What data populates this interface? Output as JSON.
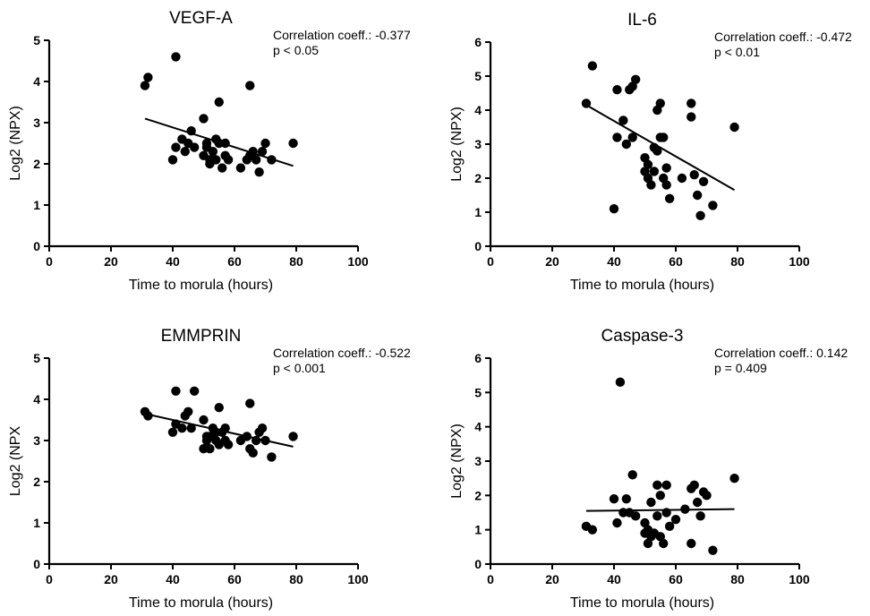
{
  "chart_data": [
    {
      "type": "scatter",
      "title": "VEGF-A",
      "xlabel": "Time to morula (hours)",
      "ylabel": "Log2 (NPX)",
      "xlim": [
        0,
        100
      ],
      "ylim": [
        0,
        5
      ],
      "xticks": [
        0,
        20,
        40,
        60,
        80,
        100
      ],
      "yticks": [
        0,
        1,
        2,
        3,
        4,
        5
      ],
      "grid": false,
      "annotations": [
        "Correlation coeff.: -0.377",
        "p < 0.05"
      ],
      "trendline": {
        "x": [
          31,
          79
        ],
        "y": [
          3.1,
          1.95
        ]
      },
      "x": [
        31,
        32,
        40,
        41,
        41,
        43,
        44,
        45,
        46,
        47,
        50,
        50,
        51,
        51,
        52,
        52,
        53,
        54,
        54,
        55,
        55,
        56,
        57,
        57,
        58,
        62,
        64,
        65,
        65,
        66,
        67,
        68,
        69,
        70,
        72,
        79
      ],
      "y": [
        3.9,
        4.1,
        2.1,
        2.4,
        4.6,
        2.6,
        2.3,
        2.5,
        2.8,
        2.4,
        3.1,
        2.2,
        2.4,
        2.5,
        2.1,
        2.0,
        2.3,
        2.1,
        2.6,
        2.5,
        3.5,
        1.9,
        2.5,
        2.2,
        2.1,
        1.9,
        2.1,
        2.2,
        3.9,
        2.3,
        2.1,
        1.8,
        2.3,
        2.5,
        2.1,
        2.5
      ]
    },
    {
      "type": "scatter",
      "title": "IL-6",
      "xlabel": "Time to morula (hours)",
      "ylabel": "Log2 (NPX)",
      "xlim": [
        0,
        100
      ],
      "ylim": [
        0,
        6
      ],
      "xticks": [
        0,
        20,
        40,
        60,
        80,
        100
      ],
      "yticks": [
        0,
        1,
        2,
        3,
        4,
        5,
        6
      ],
      "grid": false,
      "annotations": [
        "Correlation coeff.: -0.472",
        "p < 0.01"
      ],
      "trendline": {
        "x": [
          31,
          79
        ],
        "y": [
          4.15,
          1.65
        ]
      },
      "x": [
        31,
        33,
        40,
        41,
        41,
        43,
        44,
        45,
        46,
        46,
        47,
        50,
        50,
        51,
        51,
        52,
        53,
        53,
        54,
        54,
        55,
        55,
        56,
        56,
        57,
        57,
        58,
        62,
        65,
        65,
        66,
        67,
        68,
        69,
        72,
        79
      ],
      "y": [
        4.2,
        5.3,
        1.1,
        3.2,
        4.6,
        3.7,
        3.0,
        4.6,
        4.7,
        3.2,
        4.9,
        2.6,
        2.2,
        2.0,
        2.4,
        1.8,
        2.9,
        2.2,
        4.0,
        2.8,
        4.2,
        3.2,
        3.2,
        2.0,
        1.8,
        2.3,
        1.4,
        2.0,
        4.2,
        3.8,
        2.1,
        1.5,
        0.9,
        1.9,
        1.2,
        3.5
      ]
    },
    {
      "type": "scatter",
      "title": "EMMPRIN",
      "xlabel": "Time to morula (hours)",
      "ylabel": "Log2 (NPX",
      "xlim": [
        0,
        100
      ],
      "ylim": [
        0,
        5
      ],
      "xticks": [
        0,
        20,
        40,
        60,
        80,
        100
      ],
      "yticks": [
        0,
        1,
        2,
        3,
        4,
        5
      ],
      "grid": false,
      "annotations": [
        "Correlation coeff.: -0.522",
        "p < 0.001"
      ],
      "trendline": {
        "x": [
          31,
          79
        ],
        "y": [
          3.65,
          2.85
        ]
      },
      "x": [
        31,
        32,
        40,
        41,
        41,
        43,
        44,
        45,
        46,
        47,
        50,
        50,
        51,
        51,
        52,
        52,
        53,
        54,
        54,
        55,
        55,
        56,
        57,
        57,
        58,
        62,
        64,
        65,
        65,
        66,
        67,
        68,
        69,
        70,
        72,
        79
      ],
      "y": [
        3.7,
        3.6,
        3.2,
        3.4,
        4.2,
        3.3,
        3.6,
        3.7,
        3.3,
        4.2,
        3.5,
        2.8,
        3.1,
        3.0,
        3.1,
        2.8,
        3.3,
        3.0,
        3.2,
        3.8,
        2.9,
        3.2,
        3.3,
        3.0,
        2.9,
        3.0,
        3.1,
        2.8,
        3.9,
        2.7,
        3.0,
        3.2,
        3.3,
        3.0,
        2.6,
        3.1
      ]
    },
    {
      "type": "scatter",
      "title": "Caspase-3",
      "xlabel": "Time to morula (hours)",
      "ylabel": "Log2 (NPX)",
      "xlim": [
        0,
        100
      ],
      "ylim": [
        0,
        6
      ],
      "xticks": [
        0,
        20,
        40,
        60,
        80,
        100
      ],
      "yticks": [
        0,
        1,
        2,
        3,
        4,
        5,
        6
      ],
      "grid": false,
      "annotations": [
        "Correlation coeff.: 0.142",
        "p = 0.409"
      ],
      "trendline": {
        "x": [
          31,
          79
        ],
        "y": [
          1.55,
          1.6
        ]
      },
      "x": [
        31,
        33,
        40,
        41,
        42,
        43,
        44,
        45,
        46,
        47,
        50,
        50,
        51,
        51,
        52,
        52,
        53,
        54,
        54,
        55,
        55,
        56,
        57,
        57,
        58,
        60,
        63,
        65,
        65,
        66,
        67,
        68,
        69,
        70,
        72,
        79
      ],
      "y": [
        1.1,
        1.0,
        1.9,
        1.2,
        5.3,
        1.5,
        1.9,
        1.5,
        2.6,
        1.4,
        1.2,
        0.9,
        1.0,
        0.6,
        1.8,
        0.8,
        0.9,
        1.4,
        2.3,
        0.8,
        2.0,
        0.6,
        1.5,
        2.3,
        1.1,
        1.3,
        1.6,
        0.6,
        2.2,
        2.3,
        1.8,
        1.4,
        2.1,
        2.0,
        0.4,
        2.5
      ]
    }
  ]
}
